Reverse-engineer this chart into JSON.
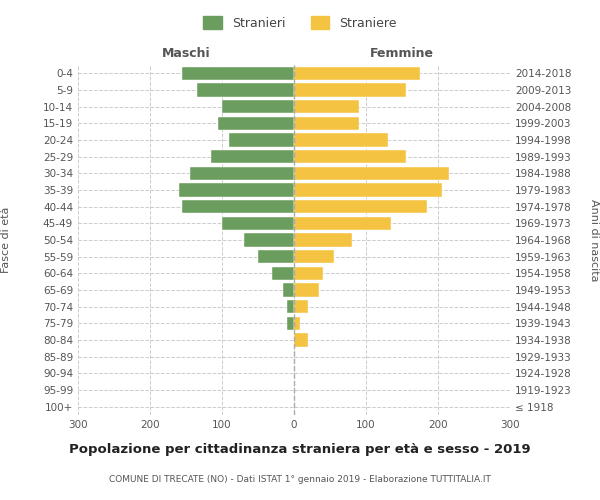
{
  "age_groups": [
    "100+",
    "95-99",
    "90-94",
    "85-89",
    "80-84",
    "75-79",
    "70-74",
    "65-69",
    "60-64",
    "55-59",
    "50-54",
    "45-49",
    "40-44",
    "35-39",
    "30-34",
    "25-29",
    "20-24",
    "15-19",
    "10-14",
    "5-9",
    "0-4"
  ],
  "birth_years": [
    "≤ 1918",
    "1919-1923",
    "1924-1928",
    "1929-1933",
    "1934-1938",
    "1939-1943",
    "1944-1948",
    "1949-1953",
    "1954-1958",
    "1959-1963",
    "1964-1968",
    "1969-1973",
    "1974-1978",
    "1979-1983",
    "1984-1988",
    "1989-1993",
    "1994-1998",
    "1999-2003",
    "2004-2008",
    "2009-2013",
    "2014-2018"
  ],
  "maschi": [
    0,
    0,
    0,
    0,
    0,
    10,
    10,
    15,
    30,
    50,
    70,
    100,
    155,
    160,
    145,
    115,
    90,
    105,
    100,
    135,
    155
  ],
  "femmine": [
    0,
    0,
    0,
    0,
    20,
    8,
    20,
    35,
    40,
    55,
    80,
    135,
    185,
    205,
    215,
    155,
    130,
    90,
    90,
    155,
    175
  ],
  "color_maschi": "#6b9e5e",
  "color_femmine": "#f5c342",
  "title": "Popolazione per cittadinanza straniera per età e sesso - 2019",
  "subtitle": "COMUNE DI TRECATE (NO) - Dati ISTAT 1° gennaio 2019 - Elaborazione TUTTITALIA.IT",
  "xlabel_left": "Maschi",
  "xlabel_right": "Femmine",
  "ylabel_left": "Fasce di età",
  "ylabel_right": "Anni di nascita",
  "legend_maschi": "Stranieri",
  "legend_femmine": "Straniere",
  "xlim": 300,
  "background_color": "#ffffff",
  "grid_color": "#cccccc"
}
